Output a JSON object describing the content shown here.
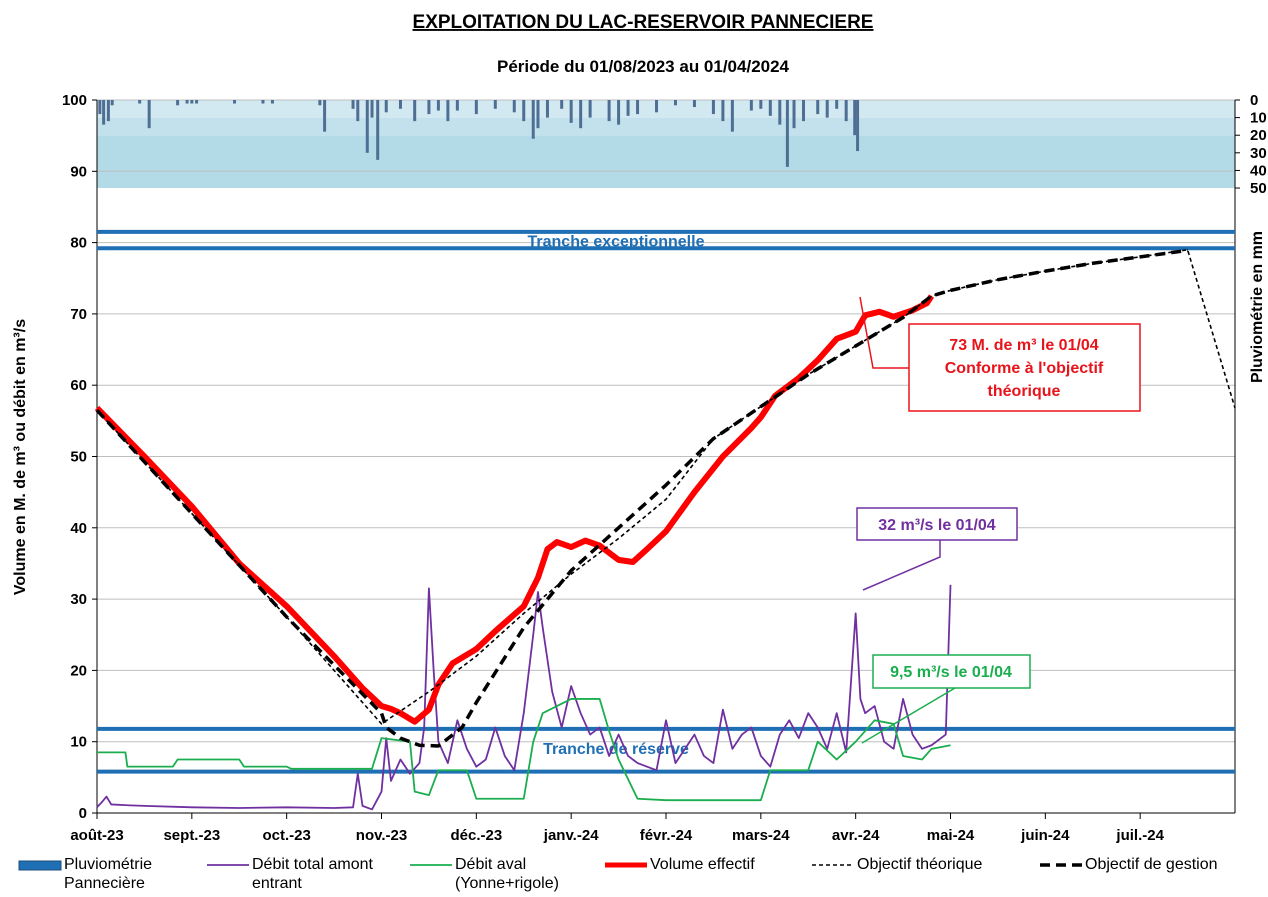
{
  "chart_data": {
    "type": "line",
    "title": "EXPLOITATION  DU  LAC-RESERVOIR  PANNECIERE",
    "subtitle": "Période du 01/08/2023 au 01/04/2024",
    "y_label": "Volume en M. de m³ ou débit en m³/s",
    "y2_label": "Pluviométrie en mm",
    "xlim": [
      0,
      12
    ],
    "xticks": [
      {
        "value": 0,
        "label": "août-23"
      },
      {
        "value": 1,
        "label": "sept.-23"
      },
      {
        "value": 2,
        "label": "oct.-23"
      },
      {
        "value": 3,
        "label": "nov.-23"
      },
      {
        "value": 4,
        "label": "déc.-23"
      },
      {
        "value": 5,
        "label": "janv.-24"
      },
      {
        "value": 6,
        "label": "févr.-24"
      },
      {
        "value": 7,
        "label": "mars-24"
      },
      {
        "value": 8,
        "label": "avr.-24"
      },
      {
        "value": 9,
        "label": "mai-24"
      },
      {
        "value": 10,
        "label": "juin-24"
      },
      {
        "value": 11,
        "label": "juil.-24"
      }
    ],
    "ylim": [
      0,
      100
    ],
    "yticks": [
      0,
      10,
      20,
      30,
      40,
      50,
      60,
      70,
      80,
      90,
      100
    ],
    "y2lim": [
      0,
      405
    ],
    "y2_reversed": true,
    "y2ticks": [
      0,
      10,
      20,
      30,
      40,
      50
    ],
    "grid": true,
    "reference_lines": [
      {
        "value": 81.5,
        "color": "#1f6fb5"
      },
      {
        "value": 79.2,
        "color": "#1f6fb5",
        "label": "Tranche exceptionnelle"
      },
      {
        "value": 11.8,
        "color": "#1f6fb5",
        "label": "Tranche de réserve"
      },
      {
        "value": 5.8,
        "color": "#1f6fb5"
      }
    ],
    "annotations": [
      {
        "lines": [
          "73 M. de m³ le 01/04",
          "Conforme à l'objectif",
          "théorique"
        ],
        "color": "#e8141b"
      },
      {
        "lines": [
          "32 m³/s le 01/04"
        ],
        "color": "#7030a0"
      },
      {
        "lines": [
          "9,5 m³/s le 01/04"
        ],
        "color": "#1aae4e"
      }
    ],
    "series": [
      {
        "name": "Pluviométrie Pannecière",
        "type": "bar",
        "axis": "y2",
        "color": "#4e6f93",
        "x": [
          0.03,
          0.07,
          0.12,
          0.16,
          0.45,
          0.55,
          0.85,
          0.95,
          1.0,
          1.05,
          1.45,
          1.75,
          1.85,
          2.35,
          2.4,
          2.7,
          2.75,
          2.85,
          2.9,
          2.96,
          3.05,
          3.2,
          3.35,
          3.5,
          3.6,
          3.7,
          3.8,
          4.0,
          4.2,
          4.4,
          4.5,
          4.6,
          4.65,
          4.75,
          4.9,
          5.0,
          5.1,
          5.2,
          5.4,
          5.5,
          5.6,
          5.7,
          5.9,
          6.1,
          6.3,
          6.5,
          6.6,
          6.7,
          6.9,
          7.0,
          7.1,
          7.2,
          7.28,
          7.35,
          7.45,
          7.6,
          7.7,
          7.8,
          7.9,
          7.99,
          8.02
        ],
        "values": [
          8,
          14,
          12,
          3,
          2,
          16,
          3,
          2,
          2,
          2,
          2,
          2,
          2,
          3,
          18,
          5,
          12,
          30,
          10,
          34,
          7,
          5,
          12,
          8,
          6,
          12,
          6,
          8,
          5,
          7,
          12,
          22,
          16,
          10,
          5,
          13,
          16,
          10,
          12,
          14,
          9,
          8,
          7,
          3,
          4,
          8,
          12,
          18,
          6,
          5,
          9,
          14,
          38,
          16,
          12,
          8,
          10,
          5,
          12,
          20,
          29
        ]
      },
      {
        "name": "Débit total amont entrant",
        "color": "#7030a0",
        "width": 1.8,
        "x": [
          0,
          0.05,
          0.1,
          0.15,
          0.3,
          0.5,
          1,
          1.5,
          2,
          2.5,
          2.7,
          2.75,
          2.8,
          2.9,
          3,
          3.05,
          3.1,
          3.2,
          3.3,
          3.4,
          3.45,
          3.5,
          3.55,
          3.6,
          3.7,
          3.8,
          3.9,
          4,
          4.1,
          4.2,
          4.3,
          4.4,
          4.5,
          4.6,
          4.65,
          4.7,
          4.8,
          4.9,
          5,
          5.1,
          5.2,
          5.3,
          5.4,
          5.5,
          5.6,
          5.7,
          5.8,
          5.9,
          6,
          6.1,
          6.2,
          6.3,
          6.4,
          6.5,
          6.6,
          6.7,
          6.8,
          6.9,
          7,
          7.1,
          7.2,
          7.3,
          7.4,
          7.5,
          7.6,
          7.7,
          7.8,
          7.9,
          8,
          8.05,
          8.1,
          8.2,
          8.3,
          8.4,
          8.5,
          8.6,
          8.7,
          8.8,
          8.95,
          9
        ],
        "values": [
          0.8,
          1.5,
          2.3,
          1.2,
          1.1,
          1,
          0.8,
          0.7,
          0.8,
          0.7,
          0.8,
          5.5,
          1,
          0.5,
          3,
          10.5,
          4.5,
          7.5,
          5.5,
          7,
          12,
          31.5,
          20,
          10,
          7,
          13,
          9,
          6.5,
          7.5,
          12,
          8,
          6,
          14,
          25,
          31,
          26,
          17,
          12,
          17.8,
          14,
          11,
          12,
          8,
          11,
          8,
          7,
          6.5,
          6,
          13,
          7,
          9,
          11,
          8,
          7,
          14.5,
          9,
          11,
          12,
          8,
          6.5,
          11,
          13,
          10.5,
          14,
          12,
          9,
          14,
          8.5,
          28,
          16,
          14,
          15,
          10,
          9,
          16,
          11,
          9,
          9.5,
          11,
          32
        ]
      },
      {
        "name": "Débit aval (Yonne+rigole)",
        "color": "#1aae4e",
        "width": 1.8,
        "x": [
          0,
          0.3,
          0.32,
          0.8,
          0.85,
          1.5,
          1.55,
          2,
          2.05,
          2.9,
          3,
          3.3,
          3.35,
          3.5,
          3.6,
          3.9,
          4,
          4.5,
          4.6,
          4.7,
          5,
          5.3,
          5.4,
          5.5,
          5.7,
          6,
          7,
          7.1,
          7.5,
          7.6,
          7.8,
          8,
          8.2,
          8.4,
          8.5,
          8.7,
          8.8,
          9
        ],
        "values": [
          8.5,
          8.5,
          6.5,
          6.5,
          7.5,
          7.5,
          6.5,
          6.5,
          6.2,
          6.2,
          10.5,
          10,
          3,
          2.5,
          6,
          6,
          2,
          2,
          10,
          14,
          16,
          16,
          11.5,
          7.5,
          2,
          1.8,
          1.8,
          6,
          6,
          10,
          7.5,
          10,
          13,
          12.5,
          8,
          7.5,
          9,
          9.5
        ]
      },
      {
        "name": "Volume effectif",
        "color": "#ff0000",
        "width": 6,
        "x": [
          0,
          0.5,
          1,
          1.5,
          2,
          2.5,
          2.8,
          3,
          3.1,
          3.2,
          3.35,
          3.5,
          3.6,
          3.75,
          4,
          4.2,
          4.5,
          4.65,
          4.75,
          4.85,
          5,
          5.15,
          5.3,
          5.5,
          5.65,
          5.8,
          6,
          6.3,
          6.6,
          6.9,
          7,
          7.15,
          7.4,
          7.6,
          7.8,
          8,
          8.1,
          8.25,
          8.4,
          8.6,
          8.75,
          8.8
        ],
        "values": [
          56.8,
          50,
          43,
          35,
          29,
          22,
          17.5,
          15,
          14.6,
          14,
          12.8,
          14.5,
          18,
          21,
          23,
          25.5,
          29,
          33,
          37,
          38,
          37.3,
          38.2,
          37.5,
          35.5,
          35.2,
          37,
          39.5,
          45,
          50,
          54,
          55.5,
          58.5,
          61,
          63.5,
          66.5,
          67.5,
          69.8,
          70.3,
          69.6,
          70.5,
          71.5,
          72.5
        ]
      },
      {
        "name": "Objectif théorique",
        "color": "#000000",
        "width": 1.6,
        "dash": "4 3",
        "x": [
          0,
          1,
          2,
          3,
          3.5,
          4,
          4.5,
          5,
          5.5,
          6,
          6.5,
          7,
          7.5,
          8,
          8.5,
          8.8,
          9,
          9.5,
          10,
          10.5,
          11,
          11.5,
          12
        ],
        "values": [
          56.5,
          42,
          27.5,
          12.5,
          17,
          22,
          28,
          33.5,
          38.5,
          44,
          52.5,
          57,
          61.5,
          65.5,
          69.5,
          72.5,
          73.3,
          74.8,
          76,
          77.1,
          78,
          79,
          56.8
        ]
      },
      {
        "name": "Objectif de gestion",
        "color": "#000000",
        "width": 3.5,
        "dash": "10 6",
        "x": [
          0,
          1,
          2,
          3,
          3.05,
          3.2,
          3.4,
          3.6,
          3.85,
          4,
          4.5,
          5,
          5.5,
          6,
          6.5,
          7,
          7.5,
          8,
          8.5,
          8.8,
          9,
          9.5,
          10,
          10.5,
          11,
          11.5
        ],
        "values": [
          56.5,
          42,
          27.5,
          14,
          12,
          10.5,
          9.5,
          9.4,
          12,
          15.5,
          26,
          34,
          40,
          46,
          52.5,
          57,
          61.5,
          65.5,
          69.5,
          72.5,
          73.3,
          74.8,
          76,
          77.1,
          78,
          78.9
        ]
      }
    ]
  }
}
